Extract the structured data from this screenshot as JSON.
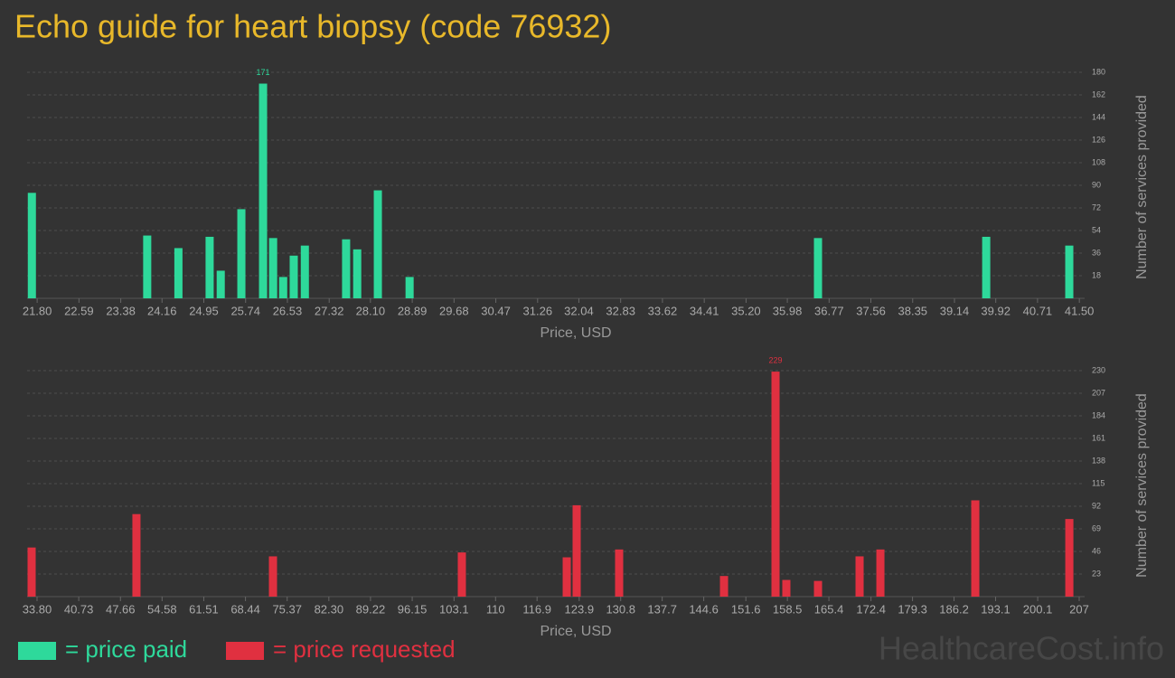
{
  "title": "Echo guide for heart biopsy (code 76932)",
  "watermark": "HealthcareCost.info",
  "chart_data": [
    {
      "type": "bar",
      "x_label": "Price, USD",
      "y_label": "Number of services provided",
      "grid": true,
      "x": [
        21.7,
        23.88,
        24.47,
        25.06,
        25.27,
        25.66,
        26.07,
        26.26,
        26.45,
        26.65,
        26.86,
        27.64,
        27.85,
        28.24,
        28.84,
        36.56,
        39.74,
        41.31
      ],
      "series": [
        {
          "name": "= price paid",
          "color": "#2ed99b",
          "values": [
            84,
            50,
            40,
            49,
            22,
            71,
            171,
            48,
            17,
            34,
            42,
            47,
            39,
            86,
            17,
            48,
            49,
            42
          ]
        }
      ],
      "xlim": [
        21.61,
        41.6
      ],
      "xticks": [
        {
          "value": 21.8,
          "label": "21.80"
        },
        22.59,
        23.38,
        24.16,
        24.95,
        25.74,
        26.53,
        27.32,
        {
          "value": 28.1,
          "label": "28.10"
        },
        28.89,
        29.68,
        30.47,
        31.26,
        32.04,
        32.83,
        33.62,
        34.41,
        {
          "value": 35.2,
          "label": "35.20"
        },
        35.98,
        36.77,
        37.56,
        38.35,
        39.14,
        39.92,
        40.71,
        {
          "value": 41.5,
          "label": "41.50"
        }
      ],
      "ylim": [
        0,
        180
      ],
      "yticks": [
        18,
        36,
        54,
        72,
        90,
        108,
        126,
        144,
        162,
        180
      ]
    },
    {
      "type": "bar",
      "x_label": "Price, USD",
      "y_label": "Number of services provided",
      "grid": true,
      "x": [
        32.9,
        50.32,
        73.01,
        104.4,
        121.83,
        123.48,
        130.54,
        147.97,
        156.53,
        158.33,
        163.59,
        170.5,
        173.96,
        189.73,
        205.36
      ],
      "series": [
        {
          "name": "= price requested",
          "color": "#e03040",
          "values": [
            50,
            84,
            41,
            45,
            40,
            93,
            48,
            21,
            229,
            17,
            16,
            41,
            48,
            98,
            79
          ]
        }
      ],
      "xlim": [
        32.15,
        207.9
      ],
      "xticks": [
        {
          "value": 33.8,
          "label": "33.80"
        },
        40.73,
        47.66,
        54.58,
        61.51,
        68.44,
        75.37,
        {
          "value": 82.3,
          "label": "82.30"
        },
        89.22,
        96.15,
        103.1,
        110,
        116.9,
        123.9,
        130.8,
        137.7,
        144.6,
        151.6,
        158.5,
        165.4,
        172.4,
        179.3,
        186.2,
        193.1,
        200.1,
        207
      ],
      "ylim": [
        0,
        230
      ],
      "yticks": [
        23,
        46,
        69,
        92,
        115,
        138,
        161,
        184,
        207,
        230
      ]
    }
  ]
}
